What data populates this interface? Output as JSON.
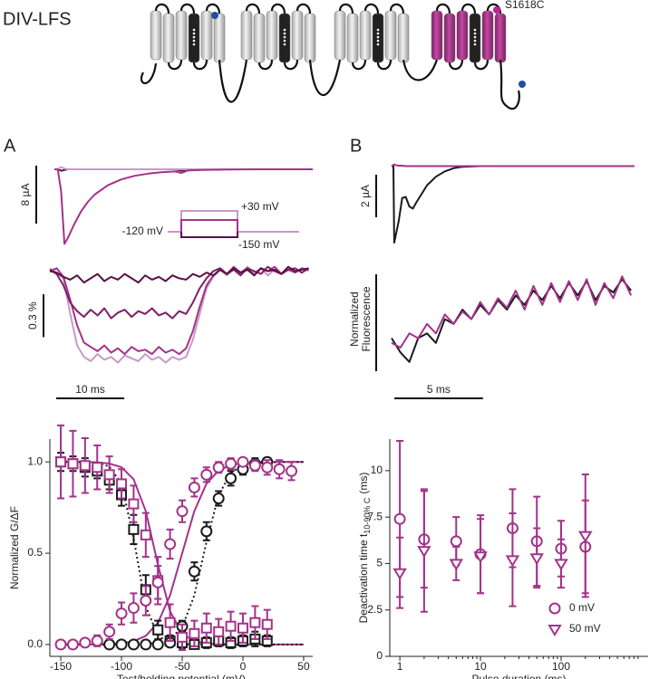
{
  "figure": {
    "title": "DIV-LFS",
    "mutation_label": "S1618C",
    "panels": [
      "A",
      "B"
    ]
  },
  "chart_data": [
    {
      "type": "line",
      "xlim": [
        0,
        38.6
      ],
      "ylim": [
        -11,
        1.5
      ],
      "x": [
        0,
        0.5,
        1,
        1.5,
        2,
        3,
        4,
        5,
        6,
        8,
        10,
        12,
        14,
        16,
        18,
        19,
        20,
        22,
        25,
        30,
        35,
        38.6
      ],
      "series": [
        {
          "color": "#5a1245",
          "values": [
            0,
            0,
            -0.2,
            -0.1,
            0,
            0,
            0,
            0,
            0,
            0,
            0,
            0,
            0,
            0,
            0,
            -0.2,
            0,
            0,
            0,
            0,
            0,
            0
          ]
        },
        {
          "color": "#c89ac6",
          "values": [
            0,
            0,
            0.3,
            0.1,
            0,
            0,
            0,
            0,
            0,
            0,
            0,
            0,
            0,
            0,
            0,
            0,
            0,
            0,
            0,
            0,
            0,
            0
          ]
        },
        {
          "color": "#a3338a",
          "values": [
            0,
            0,
            -3,
            -10.3,
            -9.5,
            -7.5,
            -5.8,
            -4.5,
            -3.5,
            -2.2,
            -1.4,
            -0.9,
            -0.6,
            -0.4,
            -0.3,
            -0.5,
            -0.15,
            -0.1,
            -0.05,
            0,
            0,
            0
          ]
        }
      ],
      "scale_y": {
        "value": 8,
        "label": "8 µA"
      },
      "protocol_labels": [
        "+30 mV",
        "-120 mV",
        "-150 mV"
      ]
    },
    {
      "type": "line",
      "xlim": [
        0,
        38.6
      ],
      "ylim": [
        -0.7,
        0.06
      ],
      "x": [
        0,
        1,
        2,
        3,
        4,
        5,
        6,
        7,
        8,
        9,
        10,
        11,
        12,
        13,
        14,
        15,
        16,
        17,
        18,
        19,
        20,
        21,
        22,
        23,
        24,
        25,
        26,
        27,
        28,
        29,
        30,
        31,
        32,
        33,
        34,
        35,
        36,
        37,
        38
      ],
      "series": [
        {
          "color": "#c89ac6",
          "values": [
            0.02,
            -0.01,
            -0.05,
            -0.3,
            -0.52,
            -0.6,
            -0.63,
            -0.58,
            -0.62,
            -0.6,
            -0.64,
            -0.59,
            -0.61,
            -0.63,
            -0.58,
            -0.62,
            -0.6,
            -0.64,
            -0.6,
            -0.62,
            -0.6,
            -0.48,
            -0.3,
            -0.12,
            -0.04,
            0.01,
            -0.03,
            0.02,
            -0.02,
            0.03,
            -0.01,
            0.02,
            -0.03,
            0.01,
            -0.02,
            0.03,
            -0.01,
            0.02,
            0
          ]
        },
        {
          "color": "#a3338a",
          "values": [
            0,
            0.02,
            -0.04,
            -0.2,
            -0.38,
            -0.5,
            -0.53,
            -0.56,
            -0.52,
            -0.57,
            -0.54,
            -0.58,
            -0.53,
            -0.56,
            -0.55,
            -0.58,
            -0.53,
            -0.57,
            -0.55,
            -0.58,
            -0.54,
            -0.42,
            -0.25,
            -0.1,
            -0.03,
            0.01,
            -0.02,
            0.03,
            -0.01,
            0.02,
            -0.03,
            0.02,
            0,
            0.03,
            -0.02,
            0.01,
            -0.01,
            0.02,
            0.01
          ]
        },
        {
          "color": "#7d1f63",
          "values": [
            0.01,
            -0.02,
            -0.1,
            -0.22,
            -0.28,
            -0.32,
            -0.27,
            -0.31,
            -0.26,
            -0.33,
            -0.29,
            -0.27,
            -0.32,
            -0.28,
            -0.3,
            -0.26,
            -0.31,
            -0.29,
            -0.33,
            -0.28,
            -0.3,
            -0.22,
            -0.12,
            -0.05,
            0,
            0.02,
            -0.02,
            0.01,
            -0.03,
            0.02,
            0,
            -0.02,
            0.03,
            0,
            -0.02,
            0.01,
            0.02,
            -0.01,
            0.02
          ]
        },
        {
          "color": "#5a1245",
          "values": [
            0,
            -0.01,
            -0.04,
            -0.06,
            -0.03,
            -0.08,
            -0.05,
            -0.02,
            -0.07,
            -0.04,
            -0.06,
            -0.02,
            -0.05,
            -0.08,
            -0.03,
            -0.06,
            -0.04,
            -0.07,
            -0.03,
            -0.05,
            -0.06,
            -0.02,
            -0.04,
            -0.01,
            -0.03,
            0.01,
            -0.02,
            0.02,
            -0.01,
            0.01,
            -0.03,
            0.02,
            0,
            0.01,
            -0.02,
            0.03,
            0,
            0.01,
            0.02
          ]
        }
      ],
      "scale_y": {
        "value": 0.3,
        "label": "0.3 %"
      },
      "scale_x": {
        "value": 10,
        "label": "10 ms"
      }
    },
    {
      "type": "line",
      "xlim": [
        0,
        13.7
      ],
      "ylim": [
        -3.9,
        0.36
      ],
      "x": [
        0,
        0.1,
        0.15,
        0.2,
        0.4,
        0.6,
        0.8,
        1.0,
        1.2,
        1.4,
        1.7,
        2.0,
        2.5,
        3.0,
        3.5,
        4.0,
        5,
        7,
        10,
        13.7
      ],
      "series": [
        {
          "color": "#1a1a1a",
          "values": [
            0,
            0,
            -3.6,
            -3.4,
            -2.6,
            -1.5,
            -1.45,
            -1.9,
            -2.0,
            -1.7,
            -1.3,
            -0.9,
            -0.5,
            -0.25,
            -0.1,
            -0.03,
            0,
            0,
            0,
            0
          ]
        },
        {
          "color": "#a3338a",
          "values": [
            0,
            0.05,
            0.08,
            0.05,
            0.02,
            0.02,
            0,
            0,
            0,
            0,
            0,
            0,
            0,
            0,
            0,
            0,
            0,
            0,
            0,
            0
          ]
        }
      ],
      "scale_y": {
        "value": 2,
        "label": "2 µA"
      }
    },
    {
      "type": "line",
      "xlim": [
        0,
        13.7
      ],
      "ylim": [
        0,
        1
      ],
      "x": [
        0,
        0.5,
        1,
        1.5,
        2,
        2.5,
        3,
        3.5,
        4,
        4.5,
        5,
        5.5,
        6,
        6.5,
        7,
        7.5,
        8,
        8.5,
        9,
        9.5,
        10,
        10.5,
        11,
        11.5,
        12,
        12.5,
        13,
        13.5
      ],
      "series": [
        {
          "color": "#1a1a1a",
          "values": [
            0.3,
            0.15,
            0.05,
            0.3,
            0.35,
            0.25,
            0.5,
            0.45,
            0.6,
            0.5,
            0.65,
            0.55,
            0.7,
            0.6,
            0.75,
            0.65,
            0.8,
            0.7,
            0.85,
            0.72,
            0.88,
            0.75,
            0.9,
            0.7,
            0.85,
            0.78,
            0.92,
            0.8
          ]
        },
        {
          "color": "#a3338a",
          "values": [
            0.25,
            0.2,
            0.35,
            0.3,
            0.45,
            0.35,
            0.55,
            0.45,
            0.58,
            0.5,
            0.68,
            0.55,
            0.72,
            0.62,
            0.8,
            0.6,
            0.85,
            0.65,
            0.88,
            0.68,
            0.9,
            0.7,
            0.92,
            0.65,
            0.88,
            0.72,
            0.95,
            0.75
          ]
        }
      ],
      "ylabel": [
        "Normalized",
        "Fluorescence"
      ],
      "scale_x": {
        "value": 5,
        "label": "5 ms"
      }
    },
    {
      "type": "scatter",
      "xlim": [
        -159,
        57.5
      ],
      "ylim": [
        -0.065,
        1.125
      ],
      "xticks": [
        -150,
        -100,
        -50,
        0,
        50
      ],
      "yticks": [
        {
          "value": 0,
          "label": "0.0"
        },
        {
          "value": 0.5,
          "label": "0.5"
        },
        {
          "value": 1,
          "label": "1.0"
        }
      ],
      "xlabel": "Test/holding potential (mV)",
      "ylabel": "Normalized G/ΔF",
      "series": [
        {
          "color": "#a3338a",
          "line": "solid",
          "x": [
            -150,
            -140,
            -130,
            -120,
            -110,
            -100,
            -90,
            -80,
            -70,
            -60,
            -50,
            -40,
            -30,
            -20,
            -10,
            0,
            10,
            20,
            30,
            40,
            50
          ],
          "values": [
            0,
            0,
            0,
            0.001,
            0.002,
            0.007,
            0.018,
            0.047,
            0.119,
            0.269,
            0.5,
            0.731,
            0.881,
            0.953,
            0.982,
            0.993,
            0.998,
            0.999,
            1,
            1,
            1
          ]
        },
        {
          "color": "#a3338a",
          "line": "solid",
          "x": [
            -150,
            -140,
            -130,
            -120,
            -110,
            -100,
            -90,
            -80,
            -70,
            -60,
            -50,
            -40,
            -30,
            -20,
            -10,
            0,
            10,
            20,
            30,
            40,
            50
          ],
          "values": [
            1,
            1,
            0.999,
            0.998,
            0.991,
            0.971,
            0.905,
            0.731,
            0.438,
            0.182,
            0.06,
            0.018,
            0.005,
            0.002,
            0,
            0,
            0,
            0,
            0,
            0,
            0
          ]
        },
        {
          "color": "#1a1a1a",
          "line": "dotted",
          "x": [
            -150,
            -140,
            -130,
            -120,
            -110,
            -100,
            -90,
            -80,
            -70,
            -60,
            -50,
            -40,
            -30,
            -20,
            -10,
            0,
            10,
            20,
            30,
            40,
            50
          ],
          "values": [
            0,
            0,
            0,
            0,
            0,
            0,
            0.001,
            0.003,
            0.009,
            0.029,
            0.095,
            0.269,
            0.562,
            0.818,
            0.94,
            0.982,
            0.995,
            0.998,
            0.999,
            1,
            1
          ]
        },
        {
          "color": "#1a1a1a",
          "line": "dotted",
          "x": [
            -150,
            -140,
            -130,
            -120,
            -110,
            -100,
            -90,
            -80,
            -70,
            -60,
            -50,
            -40,
            -30,
            -20,
            -10,
            0,
            10,
            20,
            30,
            40,
            50
          ],
          "values": [
            1,
            1,
            0.999,
            0.995,
            0.975,
            0.881,
            0.583,
            0.209,
            0.047,
            0.009,
            0.002,
            0,
            0,
            0,
            0,
            0,
            0,
            0,
            0,
            0,
            0
          ]
        },
        {
          "color": "#1a1a1a",
          "marker": "square",
          "x": [
            -150,
            -140,
            -130,
            -120,
            -110,
            -100,
            -90,
            -80,
            -70,
            -60,
            -50,
            -40,
            -30,
            -20,
            -10,
            0,
            10,
            20
          ],
          "values": [
            1.0,
            0.99,
            0.97,
            0.95,
            0.9,
            0.82,
            0.63,
            0.3,
            0.08,
            0.02,
            0.01,
            0,
            0.01,
            0.02,
            0.01,
            0.02,
            0.03,
            0.02
          ],
          "errors": [
            0.05,
            0.04,
            0.05,
            0.04,
            0.05,
            0.06,
            0.08,
            0.08,
            0.05,
            0.03,
            0.03,
            0.02,
            0.03,
            0.03,
            0.03,
            0.03,
            0.04,
            0.03
          ]
        },
        {
          "color": "#1a1a1a",
          "marker": "circle",
          "x": [
            -110,
            -100,
            -90,
            -80,
            -70,
            -60,
            -50,
            -40,
            -30,
            -20,
            -10,
            0,
            10,
            20
          ],
          "values": [
            0,
            0,
            0,
            0,
            0,
            0.01,
            0.1,
            0.4,
            0.62,
            0.8,
            0.91,
            0.96,
            0.99,
            1.0
          ],
          "errors": [
            0.01,
            0.01,
            0.01,
            0.01,
            0.01,
            0.01,
            0.03,
            0.05,
            0.05,
            0.04,
            0.04,
            0.03,
            0.03,
            0.02
          ]
        },
        {
          "color": "#a3338a",
          "marker": "square",
          "x": [
            -150,
            -140,
            -130,
            -120,
            -110,
            -100,
            -90,
            -80,
            -70,
            -60,
            -50,
            -40,
            -30,
            -20,
            -10,
            0,
            10,
            20
          ],
          "values": [
            1.0,
            0.99,
            0.98,
            0.97,
            0.93,
            0.88,
            0.77,
            0.6,
            0.35,
            0.12,
            0.04,
            0.06,
            0.09,
            0.07,
            0.1,
            0.09,
            0.12,
            0.11
          ],
          "errors": [
            0.2,
            0.18,
            0.15,
            0.12,
            0.1,
            0.08,
            0.1,
            0.12,
            0.13,
            0.1,
            0.07,
            0.07,
            0.08,
            0.07,
            0.08,
            0.08,
            0.09,
            0.08
          ]
        },
        {
          "color": "#a3338a",
          "marker": "circle",
          "x": [
            -150,
            -140,
            -130,
            -120,
            -110,
            -100,
            -90,
            -80,
            -70,
            -60,
            -50,
            -40,
            -30,
            -20,
            -10,
            0,
            10,
            20,
            30,
            40
          ],
          "values": [
            0,
            0,
            0.01,
            0.02,
            0.07,
            0.17,
            0.2,
            0.24,
            0.34,
            0.55,
            0.73,
            0.86,
            0.93,
            0.97,
            0.99,
            1.0,
            0.98,
            0.97,
            0.96,
            0.95
          ],
          "errors": [
            0.02,
            0.02,
            0.02,
            0.03,
            0.04,
            0.06,
            0.08,
            0.08,
            0.09,
            0.08,
            0.06,
            0.05,
            0.04,
            0.03,
            0.03,
            0.02,
            0.03,
            0.04,
            0.05,
            0.05
          ]
        }
      ]
    },
    {
      "type": "scatter",
      "xscale": "log",
      "xlim": [
        0.75,
        1200
      ],
      "ylim": [
        0,
        11.7
      ],
      "xticks": [
        1,
        10,
        100
      ],
      "xminorticks": [
        2,
        3,
        4,
        5,
        6,
        7,
        8,
        9,
        20,
        30,
        40,
        50,
        60,
        70,
        80,
        90,
        200,
        300,
        400,
        500,
        600,
        700,
        800,
        900
      ],
      "yticks": [
        0,
        2.5,
        5,
        7.5,
        10
      ],
      "xlabel": "Pulse duration (ms)",
      "ylabel": {
        "main": "Deactivation time t",
        "subscript": "10-90% C",
        "suffix": "(ms)"
      },
      "legend": "lower right",
      "series": [
        {
          "name": "0 mV",
          "color": "#a3338a",
          "marker": "circle",
          "x": [
            1,
            2,
            5,
            10,
            25,
            50,
            100,
            200
          ],
          "values": [
            7.4,
            6.3,
            6.2,
            5.5,
            6.9,
            6.2,
            5.8,
            5.9
          ],
          "errors": [
            4.2,
            2.6,
            1.3,
            2.1,
            2.1,
            2.4,
            1.5,
            2.5
          ]
        },
        {
          "name": "50 mV",
          "color": "#a3338a",
          "marker": "triangle-down",
          "x": [
            1,
            2,
            5,
            10,
            25,
            50,
            100,
            200
          ],
          "values": [
            4.5,
            5.7,
            5.0,
            5.4,
            5.2,
            5.3,
            5.0,
            6.5
          ],
          "errors": [
            1.9,
            3.3,
            0.9,
            2.0,
            2.5,
            1.6,
            1.3,
            3.3
          ]
        }
      ]
    }
  ]
}
